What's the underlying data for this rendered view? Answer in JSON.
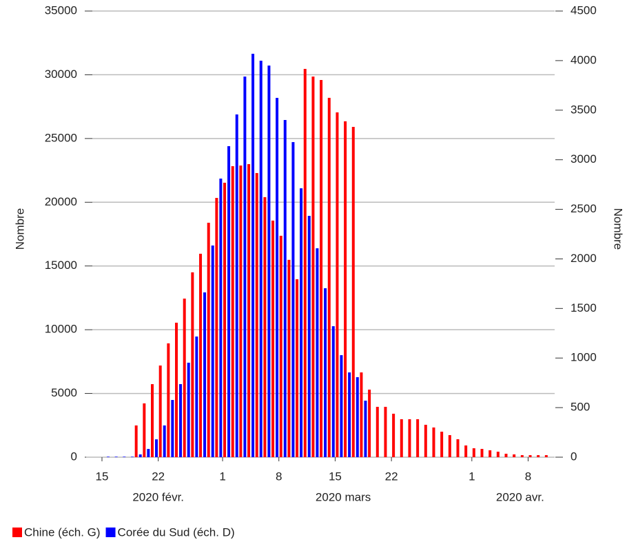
{
  "chart_data": {
    "type": "bar",
    "x": [
      "2020-02-15",
      "2020-02-16",
      "2020-02-17",
      "2020-02-18",
      "2020-02-19",
      "2020-02-20",
      "2020-02-21",
      "2020-02-22",
      "2020-02-23",
      "2020-02-24",
      "2020-02-25",
      "2020-02-26",
      "2020-02-27",
      "2020-02-28",
      "2020-02-29",
      "2020-03-01",
      "2020-03-02",
      "2020-03-03",
      "2020-03-04",
      "2020-03-05",
      "2020-03-06",
      "2020-03-07",
      "2020-03-08",
      "2020-03-09",
      "2020-03-10",
      "2020-03-11",
      "2020-03-12",
      "2020-03-13",
      "2020-03-14",
      "2020-03-15",
      "2020-03-16",
      "2020-03-17",
      "2020-03-18",
      "2020-03-19",
      "2020-03-20",
      "2020-03-21",
      "2020-03-22",
      "2020-03-23",
      "2020-03-24",
      "2020-03-25",
      "2020-03-26",
      "2020-03-27",
      "2020-03-28",
      "2020-03-29",
      "2020-03-30",
      "2020-03-31",
      "2020-04-01",
      "2020-04-02",
      "2020-04-03",
      "2020-04-04",
      "2020-04-05",
      "2020-04-06",
      "2020-04-07",
      "2020-04-08",
      "2020-04-09",
      "2020-04-10"
    ],
    "series": [
      {
        "name": "Chine (éch. G)",
        "color": "#ff0000",
        "axis": "y",
        "values": [
          null,
          null,
          null,
          null,
          2490,
          4220,
          5730,
          7190,
          8930,
          10550,
          12440,
          14500,
          15960,
          18390,
          20340,
          21530,
          22830,
          22880,
          22990,
          22290,
          20400,
          18560,
          17370,
          15480,
          13960,
          30460,
          29860,
          29590,
          28190,
          27050,
          26350,
          25910,
          6650,
          5300,
          3950,
          3950,
          3410,
          2980,
          2980,
          2980,
          2540,
          2330,
          2000,
          1730,
          1410,
          920,
          700,
          650,
          540,
          430,
          270,
          220,
          160,
          160,
          160,
          160
        ]
      },
      {
        "name": "Corée du Sud (éch. D)",
        "color": "#0000ff",
        "axis": "y2",
        "values": [
          5,
          5,
          5,
          5,
          28,
          83,
          180,
          320,
          577,
          737,
          953,
          1217,
          1662,
          2135,
          2810,
          3137,
          3457,
          3839,
          4069,
          3999,
          3950,
          3624,
          3401,
          3178,
          2712,
          2434,
          2107,
          1704,
          1321,
          1029,
          855,
          807,
          570,
          null,
          null,
          null,
          null,
          null,
          null,
          null,
          null,
          null,
          null,
          null,
          null,
          null,
          null,
          null,
          null,
          null,
          null,
          null,
          null,
          null,
          null,
          null
        ]
      }
    ],
    "ylabel": "Nombre",
    "y2label": "Nombre",
    "ylim": [
      0,
      35000
    ],
    "yticks": [
      0,
      5000,
      10000,
      15000,
      20000,
      25000,
      30000,
      35000
    ],
    "y2lim": [
      0,
      4500
    ],
    "y2ticks": [
      0,
      500,
      1000,
      1500,
      2000,
      2500,
      3000,
      3500,
      4000,
      4500
    ],
    "xticks": [
      {
        "value": "2020-02-15",
        "label": "15"
      },
      {
        "value": "2020-02-22",
        "label": "22"
      },
      {
        "value": "2020-03-01",
        "label": "1"
      },
      {
        "value": "2020-03-08",
        "label": "8"
      },
      {
        "value": "2020-03-15",
        "label": "15"
      },
      {
        "value": "2020-03-22",
        "label": "22"
      },
      {
        "value": "2020-04-01",
        "label": "1"
      },
      {
        "value": "2020-04-08",
        "label": "8"
      }
    ],
    "month_labels": [
      {
        "value": "2020-02-22",
        "label": "2020 févr."
      },
      {
        "value": "2020-03-16",
        "label": "2020 mars"
      },
      {
        "value": "2020-04-07",
        "label": "2020 avr."
      }
    ],
    "grid": true,
    "legend": "bottom-left"
  }
}
